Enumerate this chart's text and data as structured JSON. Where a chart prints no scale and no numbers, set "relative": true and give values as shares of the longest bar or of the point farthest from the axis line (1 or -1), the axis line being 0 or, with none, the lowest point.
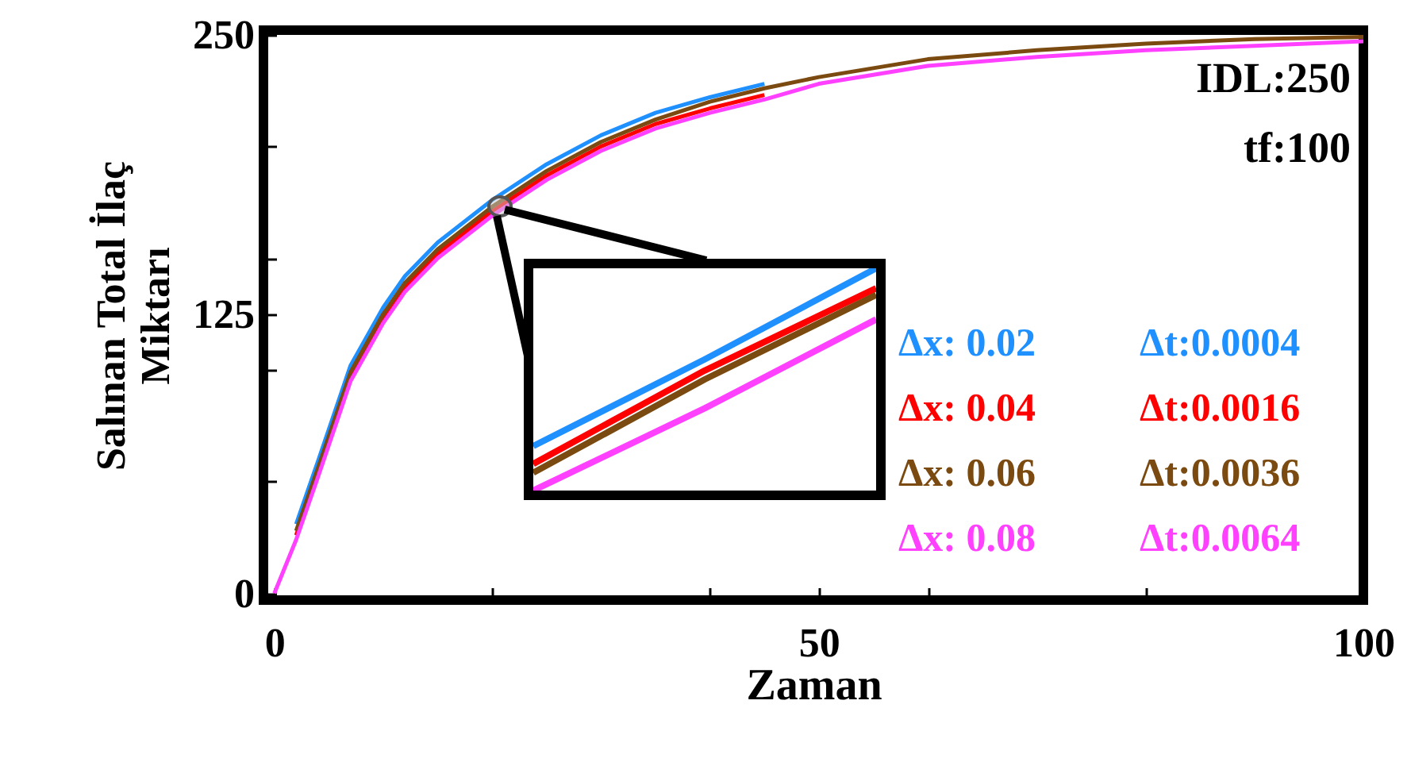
{
  "chart_data": [
    {
      "type": "line",
      "xlabel": "Zaman",
      "ylabel": "Salınan Total İlaç\nMiktarı",
      "xlim": [
        -1,
        100
      ],
      "ylim": [
        -3,
        252
      ],
      "xticks": [
        0,
        {
          "value": 20,
          "label": null
        },
        {
          "value": 40,
          "label": null
        },
        50,
        {
          "value": 60,
          "label": null
        },
        {
          "value": 80,
          "label": null
        },
        100
      ],
      "yticks": [
        0,
        {
          "value": 50,
          "label": null
        },
        {
          "value": 100,
          "label": null
        },
        125,
        {
          "value": 150,
          "label": null
        },
        {
          "value": 200,
          "label": null
        },
        250
      ],
      "x": [
        0,
        2,
        4,
        7,
        10,
        12,
        15,
        20,
        25,
        30,
        35,
        40,
        45,
        50,
        55,
        60,
        70,
        80,
        90,
        100
      ],
      "series": [
        {
          "name": "Δx: 0.02  Δt:0.0004",
          "color": "#1e90ff",
          "values": [
            null,
            31,
            59,
            102,
            128,
            142,
            157,
            176,
            192,
            205,
            215,
            222,
            228,
            null,
            null,
            null,
            null,
            null,
            null,
            null
          ]
        },
        {
          "name": "Δx: 0.04  Δt:0.0016",
          "color": "#ff0000",
          "values": [
            null,
            26,
            54,
            97,
            123,
            137,
            152,
            171,
            187,
            200,
            210,
            217,
            223,
            null,
            null,
            null,
            null,
            null,
            null,
            null
          ]
        },
        {
          "name": "Δx: 0.06  Δt:0.0036",
          "color": "#7a4a10",
          "values": [
            null,
            28,
            56,
            99,
            125,
            139,
            154,
            173,
            189,
            202,
            212,
            220,
            226,
            231,
            235,
            239,
            243,
            246,
            248,
            249
          ]
        },
        {
          "name": "Δx: 0.08  Δt:0.0064",
          "color": "#ff40ff",
          "values": [
            0,
            24,
            52,
            95,
            121,
            135,
            150,
            169,
            185,
            198,
            208,
            215,
            221,
            228,
            232,
            236,
            240,
            243,
            245,
            247
          ]
        }
      ],
      "annotations": [
        "IDL:250",
        "tf:100"
      ]
    },
    {
      "type": "line",
      "relative": true,
      "categories": [
        null,
        null,
        null
      ],
      "series": [
        {
          "color": "#1e90ff",
          "values": [
            0.2,
            0.59,
            1
          ]
        },
        {
          "color": "#ff0000",
          "values": [
            0.12,
            0.54,
            0.91
          ]
        },
        {
          "color": "#7a4a10",
          "values": [
            0.08,
            0.5,
            0.88
          ]
        },
        {
          "color": "#ff40ff",
          "values": [
            0,
            0.37,
            0.77
          ]
        }
      ]
    }
  ]
}
